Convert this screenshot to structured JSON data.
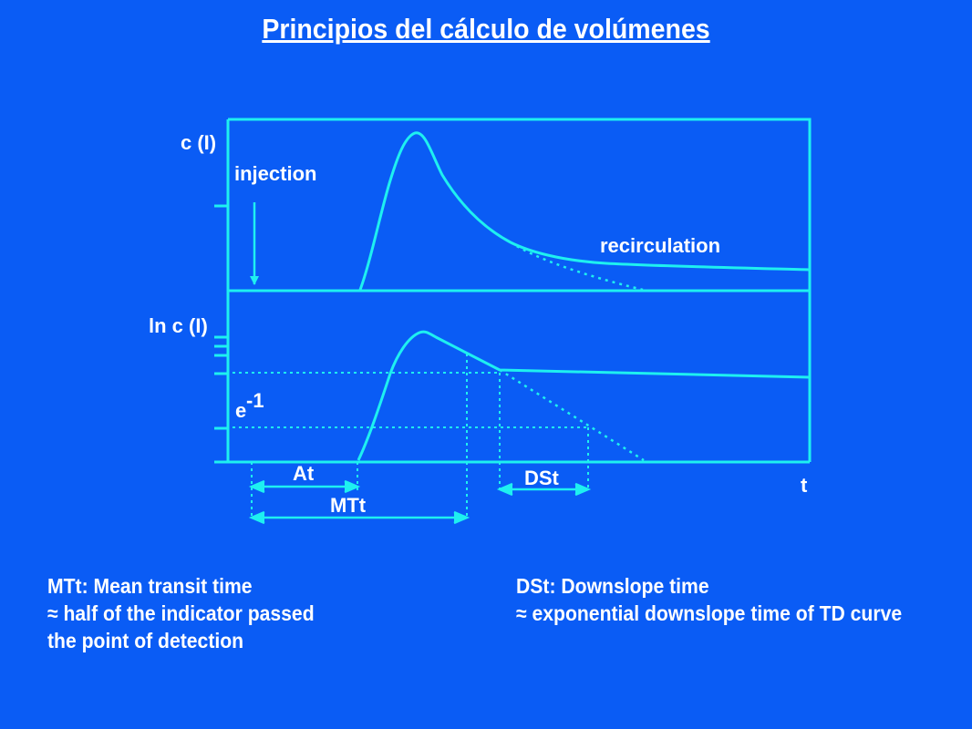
{
  "title": "Principios del cálculo de volúmenes",
  "diagram": {
    "top_axis_label": "c (I)",
    "bottom_axis_label": "ln c (I)",
    "injection_label": "injection",
    "recirculation_label": "recirculation",
    "e_base": "e",
    "e_exponent": "-1",
    "at_label": "At",
    "mtt_label": "MTt",
    "dst_label": "DSt",
    "t_label": "t",
    "color": "#1ef0f0"
  },
  "captions": {
    "left": {
      "line1": "MTt: Mean transit time",
      "line2": "≈ half of the indicator passed",
      "line3": "the point of detection"
    },
    "right": {
      "line1": "DSt: Downslope time",
      "line2": "≈ exponential downslope time of TD curve"
    }
  }
}
